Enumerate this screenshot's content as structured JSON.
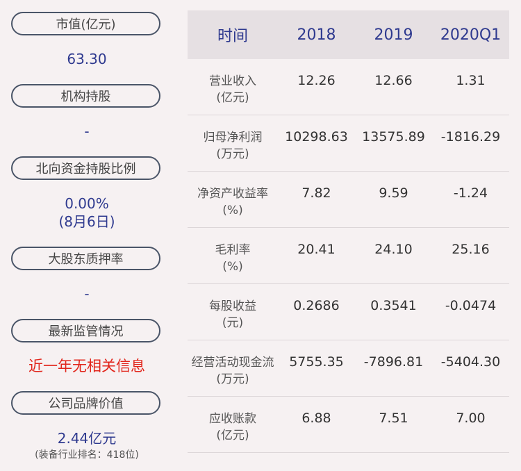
{
  "left": {
    "items": [
      {
        "label": "市值(亿元)",
        "value": "63.30"
      },
      {
        "label": "机构持股",
        "value": "-"
      },
      {
        "label": "北向资金持股比例",
        "value": "0.00%",
        "value2": "(8月6日)"
      },
      {
        "label": "大股东质押率",
        "value": "-"
      },
      {
        "label": "最新监管情况",
        "value": "近一年无相关信息"
      },
      {
        "label": "公司品牌价值",
        "value": "2.44亿元",
        "value2": "(装备行业排名：418位)"
      }
    ]
  },
  "table": {
    "headers": [
      "时间",
      "2018",
      "2019",
      "2020Q1"
    ],
    "rows": [
      {
        "label1": "营业收入",
        "label2": "(亿元)",
        "values": [
          "12.26",
          "12.66",
          "1.31"
        ]
      },
      {
        "label1": "归母净利润",
        "label2": "(万元)",
        "values": [
          "10298.63",
          "13575.89",
          "-1816.29"
        ]
      },
      {
        "label1": "净资产收益率",
        "label2": "(%)",
        "values": [
          "7.82",
          "9.59",
          "-1.24"
        ]
      },
      {
        "label1": "毛利率",
        "label2": "(%)",
        "values": [
          "20.41",
          "24.10",
          "25.16"
        ]
      },
      {
        "label1": "每股收益",
        "label2": "(元)",
        "values": [
          "0.2686",
          "0.3541",
          "-0.0474"
        ]
      },
      {
        "label1": "经营活动现金流",
        "label2": "(万元)",
        "values": [
          "5755.35",
          "-7896.81",
          "-5404.30"
        ]
      },
      {
        "label1": "应收账款",
        "label2": "(亿元)",
        "values": [
          "6.88",
          "7.51",
          "7.00"
        ]
      }
    ]
  }
}
